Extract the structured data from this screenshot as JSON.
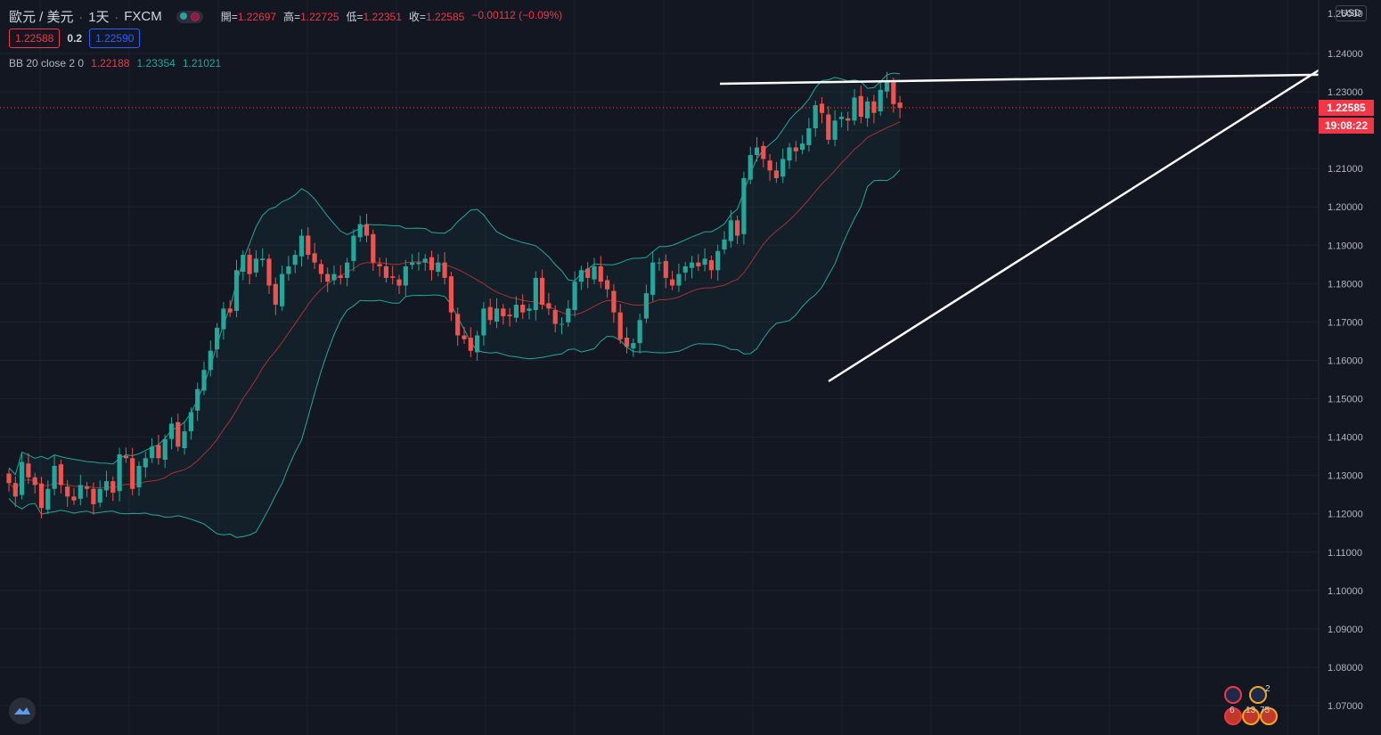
{
  "header": {
    "symbol": "歐元 / 美元",
    "interval": "1天",
    "exchange": "FXCM",
    "open_label": "開=",
    "open": "1.22697",
    "high_label": "高=",
    "high": "1.22725",
    "low_label": "低=",
    "low": "1.22351",
    "close_label": "收=",
    "close": "1.22585",
    "change": "−0.00112 (−0.09%)"
  },
  "trade": {
    "sell": "1.22588",
    "spread": "0.2",
    "buy": "1.22590"
  },
  "indicator": {
    "name": "BB 20 close 2 0",
    "basis": "1.22188",
    "upper": "1.23354",
    "lower": "1.21021"
  },
  "axis": {
    "currency": "USD",
    "top_cut": "1.25000"
  },
  "price_label": {
    "price": "1.22585",
    "countdown": "19:08:22"
  },
  "events": {
    "count_a": "2",
    "count_b": "6",
    "count_c": "13",
    "count_d": "75"
  },
  "colors": {
    "up": "#26a69a",
    "down": "#ef5350",
    "band": "#26a69a",
    "basis": "#a83232",
    "background": "#131722",
    "trendline": "#ffffff"
  },
  "chart_data": {
    "type": "candlestick",
    "ylim": [
      1.065,
      1.25
    ],
    "yticks": [
      1.07,
      1.08,
      1.09,
      1.1,
      1.11,
      1.12,
      1.13,
      1.14,
      1.15,
      1.16,
      1.17,
      1.18,
      1.19,
      1.2,
      1.21,
      1.22,
      1.23,
      1.24
    ],
    "ytick_labels": [
      "1.07000",
      "1.08000",
      "1.09000",
      "1.10000",
      "1.11000",
      "1.12000",
      "1.13000",
      "1.14000",
      "1.15000",
      "1.16000",
      "1.17000",
      "1.18000",
      "1.19000",
      "1.20000",
      "1.21000",
      "1.22000",
      "1.23000",
      "1.24000"
    ],
    "current_price": 1.22585,
    "closes": [
      1.128,
      1.1245,
      1.1335,
      1.1295,
      1.1275,
      1.1215,
      1.1265,
      1.1325,
      1.1275,
      1.1245,
      1.1235,
      1.1275,
      1.1265,
      1.1225,
      1.1265,
      1.1285,
      1.1255,
      1.1355,
      1.1345,
      1.1265,
      1.1325,
      1.1345,
      1.1375,
      1.1345,
      1.1395,
      1.1435,
      1.1375,
      1.1415,
      1.1465,
      1.1525,
      1.1575,
      1.1625,
      1.1685,
      1.1735,
      1.1725,
      1.1835,
      1.1875,
      1.1825,
      1.1865,
      1.1865,
      1.1795,
      1.1745,
      1.1825,
      1.1845,
      1.1875,
      1.1925,
      1.1875,
      1.1855,
      1.1825,
      1.1805,
      1.1825,
      1.1815,
      1.1855,
      1.1925,
      1.1955,
      1.1925,
      1.1855,
      1.1845,
      1.1815,
      1.1815,
      1.1795,
      1.1845,
      1.1855,
      1.1855,
      1.1865,
      1.1835,
      1.1855,
      1.1815,
      1.1725,
      1.1665,
      1.1655,
      1.1625,
      1.1665,
      1.1735,
      1.1705,
      1.1735,
      1.1715,
      1.1715,
      1.1745,
      1.1725,
      1.1735,
      1.1815,
      1.1745,
      1.1735,
      1.1695,
      1.1695,
      1.1735,
      1.1805,
      1.1835,
      1.1815,
      1.1845,
      1.1805,
      1.1785,
      1.1725,
      1.1655,
      1.1635,
      1.1645,
      1.1705,
      1.1775,
      1.1855,
      1.1855,
      1.1815,
      1.1795,
      1.1825,
      1.1845,
      1.1855,
      1.1845,
      1.1865,
      1.1835,
      1.1885,
      1.1915,
      1.1965,
      1.1925,
      1.2075,
      1.2135,
      1.2155,
      1.2125,
      1.2095,
      1.2075,
      1.2125,
      1.2155,
      1.2145,
      1.2165,
      1.2205,
      1.2265,
      1.2245,
      1.2175,
      1.2225,
      1.2235,
      1.2225,
      1.2285,
      1.2235,
      1.2275,
      1.2245,
      1.2305,
      1.2325,
      1.2268,
      1.22585
    ]
  }
}
